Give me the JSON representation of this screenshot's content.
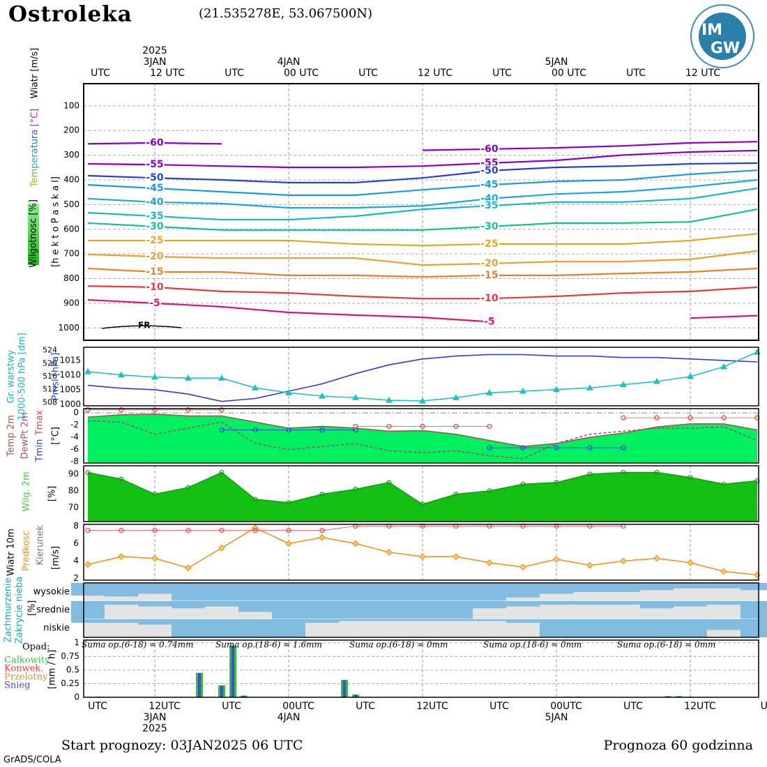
{
  "header": {
    "title": "Ostroleka",
    "coords": "(21.535278E, 53.067500N)",
    "logo": [
      "IM",
      "GW"
    ]
  },
  "time_axis": {
    "xlim": [
      0,
      60
    ],
    "top_ticks": [
      {
        "value": 0,
        "label": "UTC"
      },
      {
        "value": 6,
        "label": "12 UTC"
      },
      {
        "value": 12,
        "label": "UTC"
      },
      {
        "value": 18,
        "label": "00 UTC"
      },
      {
        "value": 24,
        "label": "UTC"
      },
      {
        "value": 30,
        "label": "12 UTC"
      },
      {
        "value": 36,
        "label": "UTC"
      },
      {
        "value": 42,
        "label": "00 UTC"
      },
      {
        "value": 48,
        "label": "UTC"
      },
      {
        "value": 54,
        "label": "12 UTC"
      }
    ],
    "top_year": {
      "value": 6,
      "label": "2025"
    },
    "top_dates": [
      {
        "value": 6,
        "label": "3JAN"
      },
      {
        "value": 18,
        "label": "4JAN"
      },
      {
        "value": 42,
        "label": "5JAN"
      }
    ],
    "bottom_ticks": [
      {
        "value": 0,
        "label": "UTC"
      },
      {
        "value": 6,
        "label": "12UTC"
      },
      {
        "value": 12,
        "label": "UTC"
      },
      {
        "value": 18,
        "label": "00UTC"
      },
      {
        "value": 24,
        "label": "UTC"
      },
      {
        "value": 30,
        "label": "12UTC"
      },
      {
        "value": 36,
        "label": "UTC"
      },
      {
        "value": 42,
        "label": "00UTC"
      },
      {
        "value": 48,
        "label": "UTC"
      },
      {
        "value": 54,
        "label": "12UTC"
      },
      {
        "value": 60,
        "label": "UT"
      }
    ],
    "bottom_dates": [
      {
        "value": 6,
        "label": "3JAN"
      },
      {
        "value": 18,
        "label": "4JAN"
      },
      {
        "value": 42,
        "label": "5JAN"
      }
    ],
    "bottom_year": {
      "value": 6,
      "label": "2025"
    },
    "xgrid": [
      6,
      18,
      30,
      42,
      54
    ]
  },
  "chart_data": [
    {
      "type": "contour",
      "labels": [
        "Wiatr [m/s]",
        "Temperatura [°C]",
        "Wilgotnosc [%]"
      ],
      "ylabel": "[h e k t o P a s k a l]",
      "annotation": "FR",
      "ylim": [
        10,
        1050
      ],
      "yreverse": true,
      "yticks": [
        100,
        200,
        300,
        400,
        500,
        600,
        700,
        800,
        900,
        1000
      ],
      "grid": true,
      "x": [
        0,
        6,
        12,
        18,
        24,
        30,
        36,
        42,
        48,
        54,
        60
      ],
      "series": [
        {
          "level": -60,
          "color": "#8a00c8",
          "values": [
            254,
            250,
            254,
            null,
            null,
            280,
            275,
            270,
            262,
            250,
            245
          ]
        },
        {
          "level": -55,
          "color": "#8a00c8",
          "values": [
            335,
            338,
            344,
            349,
            349,
            344,
            332,
            321,
            299,
            287,
            281
          ]
        },
        {
          "level": -50,
          "color": "#2244d0",
          "values": [
            383,
            392,
            400,
            411,
            411,
            392,
            363,
            349,
            344,
            335,
            332
          ]
        },
        {
          "level": -45,
          "color": "#1a9be0",
          "values": [
            420,
            434,
            448,
            462,
            462,
            440,
            420,
            406,
            400,
            377,
            361
          ]
        },
        {
          "level": -40,
          "color": "#1aa8e0",
          "values": [
            476,
            490,
            496,
            513,
            513,
            505,
            476,
            457,
            448,
            428,
            400
          ]
        },
        {
          "level": -35,
          "color": "#18b8c8",
          "values": [
            533,
            547,
            561,
            561,
            547,
            519,
            505,
            490,
            490,
            476,
            434
          ]
        },
        {
          "level": -30,
          "color": "#14c090",
          "values": [
            575,
            589,
            603,
            603,
            603,
            603,
            589,
            575,
            575,
            570,
            519
          ]
        },
        {
          "level": -25,
          "color": "#e0a828",
          "values": [
            646,
            646,
            646,
            646,
            660,
            666,
            660,
            660,
            660,
            646,
            618
          ]
        },
        {
          "level": -20,
          "color": "#e8a030",
          "values": [
            702,
            711,
            717,
            717,
            717,
            745,
            739,
            731,
            731,
            722,
            688
          ]
        },
        {
          "level": -15,
          "color": "#e8802c",
          "values": [
            759,
            773,
            773,
            787,
            787,
            793,
            787,
            787,
            779,
            773,
            759
          ]
        },
        {
          "level": -10,
          "color": "#e83838",
          "values": [
            830,
            835,
            852,
            858,
            872,
            881,
            881,
            872,
            858,
            852,
            835
          ]
        },
        {
          "level": -5,
          "color": "#e0107a",
          "values": [
            886,
            900,
            914,
            937,
            948,
            957,
            975,
            null,
            null,
            960,
            950
          ]
        }
      ]
    },
    {
      "type": "line",
      "ylim": [
        999.5,
        1019.5
      ],
      "yticks": [
        1000,
        1005,
        1010,
        1015
      ],
      "y2lim": [
        507,
        525
      ],
      "y2ticks": [
        508,
        512,
        516,
        520,
        524
      ],
      "y2label": "1000-500 hPa [dm]",
      "x": [
        0,
        3,
        6,
        9,
        12,
        15,
        18,
        21,
        24,
        27,
        30,
        33,
        36,
        39,
        42,
        45,
        48,
        51,
        54,
        57,
        60
      ],
      "series": [
        {
          "name": "Pmsl [hPa]",
          "color": "#2a3fd0",
          "values": [
            1006.5,
            1005.5,
            1005,
            1003.5,
            1001,
            1002,
            1004.5,
            1007,
            1010.5,
            1013.5,
            1015.5,
            1016.5,
            1017,
            1017,
            1016.5,
            1016.5,
            1016,
            1016,
            1015.5,
            1015,
            1014.5
          ]
        },
        {
          "name": "Gr. warstwy",
          "color": "#20c0c8",
          "axis": "y2",
          "marker": "triangle",
          "values": [
            517.5,
            516.5,
            515.8,
            515.5,
            515.5,
            512.5,
            511,
            510,
            509.5,
            508.7,
            508.5,
            509.5,
            511,
            511.5,
            512,
            512.5,
            513.5,
            514.5,
            516,
            519,
            523.5
          ]
        }
      ]
    },
    {
      "type": "line",
      "ylim": [
        -8.2,
        0.7
      ],
      "yticks": [
        0,
        -2,
        -4,
        -6,
        -8
      ],
      "ylabel": "[°C]",
      "x": [
        0,
        3,
        6,
        9,
        12,
        15,
        18,
        21,
        24,
        27,
        30,
        33,
        36,
        39,
        42,
        45,
        48,
        51,
        54,
        57,
        60
      ],
      "series": [
        {
          "name": "Temp 2m",
          "color": "#9a5a50",
          "fill": "#00f060",
          "values": [
            -0.7,
            -0.3,
            -0.2,
            -0.5,
            -0.5,
            -1.5,
            -2.5,
            -2.2,
            -2.5,
            -3.0,
            -2.9,
            -3.5,
            -4.5,
            -5.5,
            -5.0,
            -4.0,
            -3.3,
            -2.3,
            -1.8,
            -1.8,
            -2.8
          ]
        },
        {
          "name": "DewPt 2m",
          "color": "#a05070",
          "dashed": true,
          "values": [
            -1.3,
            -1.5,
            -3.5,
            -2.5,
            -1.5,
            -5.0,
            -6.0,
            -5.5,
            -5.0,
            -6.2,
            -6.5,
            -6.2,
            -7.0,
            -7.5,
            -5.0,
            -3.5,
            -3.0,
            -2.5,
            -2.5,
            -2.3,
            -4.5
          ]
        },
        {
          "name": "Tmin",
          "color": "#3040e0",
          "marker": "circle",
          "values": [
            null,
            null,
            null,
            null,
            -2.8,
            -2.8,
            -2.8,
            -2.8,
            -2.8,
            null,
            null,
            null,
            -5.7,
            -5.7,
            -5.7,
            -5.7,
            -5.7,
            null,
            null,
            null,
            null
          ]
        },
        {
          "name": "Tmax",
          "color": "#e04040",
          "marker": "circle",
          "values": [
            0.5,
            0.5,
            0.5,
            0.5,
            0.5,
            null,
            null,
            null,
            -2.2,
            -2.2,
            -2.2,
            -2.2,
            -2.2,
            null,
            null,
            null,
            -0.8,
            -0.8,
            -0.8,
            -0.8,
            -0.8
          ]
        }
      ]
    },
    {
      "type": "line",
      "ylim": [
        61.7,
        95
      ],
      "yticks": [
        70,
        80,
        90
      ],
      "ylabel": "[%]",
      "x": [
        0,
        3,
        6,
        9,
        12,
        15,
        18,
        21,
        24,
        27,
        30,
        33,
        36,
        39,
        42,
        45,
        48,
        51,
        54,
        57,
        60
      ],
      "series": [
        {
          "name": "Wilg. 2m",
          "color": "#1a9a1a",
          "fill": "#14c014",
          "marker": "circle",
          "values": [
            91,
            87,
            78,
            82,
            91,
            75,
            73,
            78,
            81,
            85,
            72,
            78,
            80,
            84,
            85,
            90,
            91,
            91,
            88,
            84,
            86
          ]
        }
      ]
    },
    {
      "type": "line",
      "title": "Wiatr 10m",
      "labels": [
        "Kierunek"
      ],
      "ylim": [
        1.8,
        8.2
      ],
      "yticks": [
        2,
        4,
        6,
        8
      ],
      "ylabel": "[m/s]",
      "x": [
        0,
        3,
        6,
        9,
        12,
        15,
        18,
        21,
        24,
        27,
        30,
        33,
        36,
        39,
        42,
        45,
        48,
        51,
        54,
        57,
        60
      ],
      "series": [
        {
          "name": "Predkosc",
          "color": "#f09020",
          "marker": "diamond",
          "values": [
            3.6,
            4.5,
            4.3,
            3.2,
            5.5,
            7.8,
            6.0,
            6.7,
            6.0,
            5.0,
            4.5,
            4.5,
            3.8,
            3.3,
            4.2,
            3.5,
            4.0,
            4.3,
            3.8,
            2.8,
            2.4
          ]
        },
        {
          "color": "#e04040",
          "marker": "circle",
          "noline": true,
          "values": [
            7.5,
            7.5,
            7.5,
            7.5,
            7.5,
            7.5,
            7.5,
            7.5,
            8,
            8,
            8,
            8,
            8,
            8,
            8,
            8,
            8,
            null,
            null,
            null,
            null
          ]
        }
      ]
    },
    {
      "type": "band",
      "labels": [
        "Zachmurzenie",
        "Zakrycie nieba"
      ],
      "ylabel": "[%]",
      "ylim": [
        0,
        100
      ],
      "color": "#84bce0",
      "x": [
        0,
        3,
        6,
        9,
        12,
        15,
        18,
        21,
        24,
        27,
        30,
        33,
        36,
        39,
        42,
        45,
        48,
        51,
        54,
        57,
        60
      ],
      "series": [
        {
          "name": "wysokie",
          "values": [
            70,
            75,
            60,
            100,
            100,
            100,
            100,
            100,
            100,
            100,
            100,
            100,
            100,
            80,
            60,
            50,
            50,
            40,
            30,
            30,
            40
          ]
        },
        {
          "name": "srednie",
          "values": [
            100,
            20,
            30,
            40,
            30,
            60,
            100,
            100,
            100,
            100,
            100,
            100,
            40,
            30,
            20,
            20,
            20,
            40,
            30,
            20,
            100
          ]
        },
        {
          "name": "niskie",
          "values": [
            20,
            20,
            30,
            100,
            100,
            100,
            100,
            20,
            10,
            10,
            10,
            10,
            10,
            20,
            100,
            100,
            100,
            100,
            100,
            60,
            100
          ]
        }
      ]
    },
    {
      "type": "bar",
      "title": "Opad:",
      "ylabel": "[mm / h]",
      "ylim": [
        0,
        1.05
      ],
      "yticks": [
        0,
        0.25,
        0.5,
        0.75,
        1
      ],
      "grid": true,
      "annotations": [
        "Suma op.(6-18) = 0.74mm",
        "Suma op.(18-6) = 1.6mm",
        "Suma op.(6-18) = 0mm",
        "Suma op.(18-6) = 0mm",
        "Suma op.(6-18) = 0mm"
      ],
      "x": [
        1,
        10,
        12,
        13,
        14,
        23,
        24,
        43,
        44,
        52,
        53,
        54
      ],
      "series": [
        {
          "name": "Calkowity",
          "color": "#30c040",
          "values": [
            0.01,
            0.45,
            0.22,
            0.95,
            0.03,
            0.32,
            0.05,
            0.01,
            0.01,
            0.02,
            0.02,
            0.01
          ]
        },
        {
          "name": "Konwek.",
          "color": "#e04040"
        },
        {
          "name": "Przelotny",
          "color": "#e88830"
        },
        {
          "name": "Snieg",
          "color": "#4848d0",
          "values": [
            0.01,
            0.44,
            0.21,
            0.94,
            0.03,
            0.31,
            0.05,
            0.01,
            0.01,
            0.02,
            0.02,
            0.01
          ]
        }
      ]
    }
  ],
  "footer": {
    "start": "Start prognozy: 03JAN2025 06 UTC",
    "range": "Prognoza 60 godzinna",
    "credit": "GrADS/COLA"
  }
}
